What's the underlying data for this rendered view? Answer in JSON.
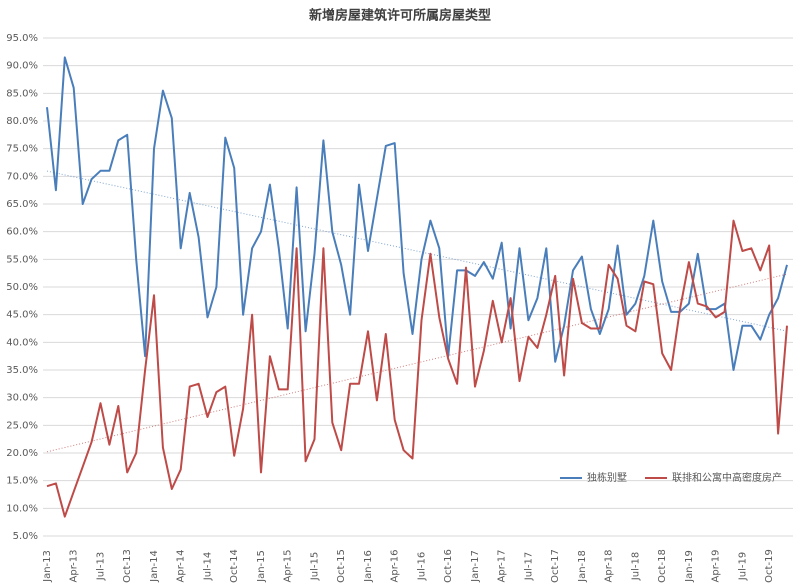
{
  "chart_data": {
    "type": "line",
    "title": "新增房屋建筑许可所属房屋类型",
    "categories": [
      "Jan-13",
      null,
      null,
      "Apr-13",
      null,
      null,
      "Jul-13",
      null,
      null,
      "Oct-13",
      null,
      null,
      "Jan-14",
      null,
      null,
      "Apr-14",
      null,
      null,
      "Jul-14",
      null,
      null,
      "Oct-14",
      null,
      null,
      "Jan-15",
      null,
      null,
      "Apr-15",
      null,
      null,
      "Jul-15",
      null,
      null,
      "Oct-15",
      null,
      null,
      "Jan-16",
      null,
      null,
      "Apr-16",
      null,
      null,
      "Jul-16",
      null,
      null,
      "Oct-16",
      null,
      null,
      "Jan-17",
      null,
      null,
      "Apr-17",
      null,
      null,
      "Jul-17",
      null,
      null,
      "Oct-17",
      null,
      null,
      "Jan-18",
      null,
      null,
      "Apr-18",
      null,
      null,
      "Jul-18",
      null,
      null,
      "Oct-18",
      null,
      null,
      "Jan-19",
      null,
      null,
      "Apr-19",
      null,
      null,
      "Jul-19",
      null,
      null,
      "Oct-19",
      null,
      null
    ],
    "series": [
      {
        "name": "独栋别墅",
        "color": "#4a7ebb",
        "values": [
          82.5,
          67.5,
          91.5,
          86,
          65,
          69.5,
          71,
          71,
          76.5,
          77.5,
          55,
          37.5,
          75,
          85.5,
          80.5,
          57,
          67,
          59,
          44.5,
          50,
          77,
          71.5,
          45,
          57,
          60,
          68.5,
          57,
          42.5,
          68,
          42,
          56,
          76.5,
          60,
          54,
          45,
          68.5,
          56.5,
          66,
          75.5,
          76,
          52.5,
          41.5,
          55,
          62,
          57,
          37.5,
          53,
          53,
          52,
          54.5,
          51.5,
          58,
          42.5,
          57,
          44,
          48,
          57,
          36.5,
          43,
          53,
          55.5,
          46,
          41.5,
          46,
          57.5,
          45,
          47,
          52,
          62,
          51,
          45.5,
          45.5,
          47,
          56,
          46,
          46,
          47,
          35,
          43,
          43,
          40.5,
          45,
          48,
          54
        ]
      },
      {
        "name": "联排和公寓中高密度房产",
        "color": "#be4b48",
        "values": [
          14,
          14.5,
          8.5,
          13,
          17.5,
          22,
          29,
          21.5,
          28.5,
          16.5,
          20,
          35,
          48.5,
          21,
          13.5,
          17,
          32,
          32.5,
          26.5,
          31,
          32,
          19.5,
          28,
          45,
          16.5,
          37.5,
          31.5,
          31.5,
          57,
          18.5,
          22.5,
          57,
          25.5,
          20.5,
          32.5,
          32.5,
          42,
          29.5,
          41.5,
          26,
          20.5,
          19,
          44,
          56,
          44.5,
          37,
          32.5,
          53.5,
          32,
          38.5,
          47.5,
          40,
          48,
          33,
          41,
          39,
          45,
          52,
          34,
          51.5,
          43.5,
          42.5,
          42.5,
          54,
          51.5,
          43,
          42,
          51,
          50.5,
          38,
          35,
          46,
          54.5,
          47,
          46.5,
          44.5,
          45.5,
          62,
          56.5,
          57,
          53,
          57.5,
          23.5,
          43
        ]
      }
    ],
    "ylim": [
      5,
      95
    ],
    "yticks": [
      {
        "value": 5,
        "label": "5.0%"
      },
      {
        "value": 10,
        "label": "10.0%"
      },
      {
        "value": 15,
        "label": "15.0%"
      },
      {
        "value": 20,
        "label": "20.0%"
      },
      {
        "value": 25,
        "label": "25.0%"
      },
      {
        "value": 30,
        "label": "30.0%"
      },
      {
        "value": 35,
        "label": "35.0%"
      },
      {
        "value": 40,
        "label": "40.0%"
      },
      {
        "value": 45,
        "label": "45.0%"
      },
      {
        "value": 50,
        "label": "50.0%"
      },
      {
        "value": 55,
        "label": "55.0%"
      },
      {
        "value": 60,
        "label": "60.0%"
      },
      {
        "value": 65,
        "label": "65.0%"
      },
      {
        "value": 70,
        "label": "70.0%"
      },
      {
        "value": 75,
        "label": "75.0%"
      },
      {
        "value": 80,
        "label": "80.0%"
      },
      {
        "value": 85,
        "label": "85.0%"
      },
      {
        "value": 90,
        "label": "90.0%"
      },
      {
        "value": 95,
        "label": "95.0%"
      }
    ],
    "grid": true,
    "trendline": true,
    "legend": "lower right"
  }
}
